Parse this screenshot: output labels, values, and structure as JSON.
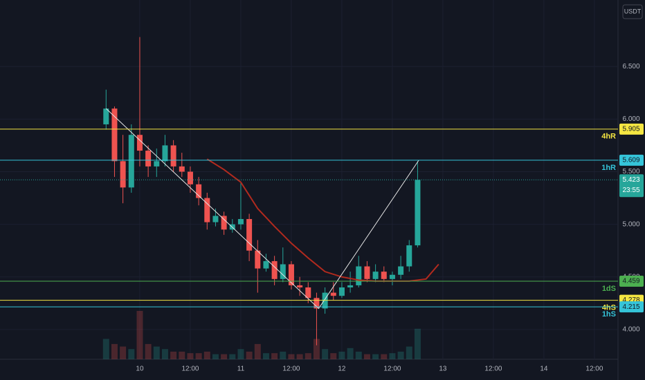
{
  "chart_data": {
    "type": "candlestick",
    "currency": "USDT",
    "x": [
      -8,
      -6,
      -4,
      -2,
      0,
      2,
      4,
      6,
      8,
      10,
      12,
      14,
      16,
      18,
      20,
      22,
      24,
      26,
      28,
      30,
      32,
      34,
      36,
      38,
      40,
      42,
      44,
      46,
      48,
      50,
      52,
      54,
      56,
      58,
      60,
      62,
      64,
      66
    ],
    "open": [
      5.95,
      6.1,
      5.6,
      5.35,
      5.85,
      5.7,
      5.55,
      5.6,
      5.75,
      5.55,
      5.5,
      5.38,
      5.25,
      5.02,
      5.08,
      4.95,
      5.0,
      5.05,
      4.75,
      4.58,
      4.65,
      4.48,
      4.62,
      4.42,
      4.4,
      4.3,
      4.2,
      4.35,
      4.32,
      4.4,
      4.42,
      4.6,
      4.48,
      4.55,
      4.48,
      4.52,
      4.6,
      4.8
    ],
    "high": [
      6.28,
      6.12,
      5.85,
      5.95,
      6.78,
      5.75,
      5.72,
      5.85,
      5.8,
      5.68,
      5.55,
      5.45,
      5.3,
      5.15,
      5.12,
      5.05,
      5.4,
      5.1,
      4.85,
      4.72,
      4.7,
      4.78,
      4.65,
      4.5,
      4.45,
      4.35,
      4.4,
      4.45,
      4.45,
      4.55,
      4.7,
      4.65,
      4.62,
      4.6,
      4.55,
      4.7,
      4.85,
      5.6
    ],
    "low": [
      5.9,
      5.45,
      5.2,
      5.3,
      5.55,
      5.45,
      5.45,
      5.55,
      5.5,
      5.45,
      5.3,
      5.18,
      4.95,
      4.98,
      4.9,
      4.92,
      4.95,
      4.65,
      4.35,
      4.55,
      4.42,
      4.45,
      4.38,
      4.32,
      4.25,
      3.85,
      4.15,
      4.28,
      4.3,
      4.35,
      4.4,
      4.45,
      4.45,
      4.45,
      4.42,
      4.48,
      4.55,
      4.78
    ],
    "close": [
      6.1,
      5.6,
      5.35,
      5.85,
      5.7,
      5.55,
      5.6,
      5.75,
      5.55,
      5.5,
      5.38,
      5.25,
      5.02,
      5.08,
      4.95,
      5.0,
      5.05,
      4.75,
      4.58,
      4.65,
      4.48,
      4.62,
      4.42,
      4.4,
      4.3,
      4.2,
      4.35,
      4.32,
      4.4,
      4.42,
      4.6,
      4.48,
      4.55,
      4.48,
      4.52,
      4.6,
      4.8,
      5.423
    ],
    "volume": [
      40,
      30,
      25,
      20,
      95,
      30,
      25,
      20,
      15,
      15,
      12,
      12,
      15,
      10,
      10,
      10,
      20,
      15,
      30,
      12,
      12,
      15,
      10,
      10,
      12,
      40,
      20,
      12,
      15,
      22,
      15,
      10,
      10,
      10,
      12,
      15,
      25,
      60
    ],
    "up_color": "#26a69a",
    "down_color": "#ef5350",
    "countdown": "23:55",
    "moving_average": {
      "color": "#b22a1e",
      "x": [
        16,
        20,
        24,
        28,
        32,
        36,
        40,
        44,
        48,
        52,
        56,
        60,
        64,
        68,
        71
      ],
      "values": [
        5.62,
        5.52,
        5.4,
        5.15,
        4.98,
        4.82,
        4.68,
        4.55,
        4.5,
        4.47,
        4.46,
        4.46,
        4.46,
        4.48,
        4.62
      ]
    },
    "trend_line": {
      "color": "#e6e6e6",
      "x": [
        -8,
        42.5,
        66.3
      ],
      "values": [
        6.1,
        4.2,
        5.61
      ]
    },
    "levels": [
      {
        "name": "4hR",
        "value": 5.905,
        "color": "#f5e642"
      },
      {
        "name": "1hR",
        "value": 5.609,
        "color": "#35c4d9"
      },
      {
        "name": "1dS",
        "value": 4.459,
        "color": "#4caf50"
      },
      {
        "name": "4hS",
        "value": 4.278,
        "color": "#f5e642"
      },
      {
        "name": "1hS",
        "value": 4.215,
        "color": "#35c4d9"
      }
    ],
    "xlim": [
      -33.2,
      113.6
    ],
    "xticks": [
      {
        "value": 0,
        "label": "10"
      },
      {
        "value": 12,
        "label": "12:00"
      },
      {
        "value": 24,
        "label": "11"
      },
      {
        "value": 36,
        "label": "12:00"
      },
      {
        "value": 48,
        "label": "12"
      },
      {
        "value": 60,
        "label": "12:00"
      },
      {
        "value": 72,
        "label": "13"
      },
      {
        "value": 84,
        "label": "12:00"
      },
      {
        "value": 96,
        "label": "14"
      },
      {
        "value": 108,
        "label": "12:00"
      }
    ],
    "ylim": [
      3.717,
      7.132
    ],
    "yticks": [
      {
        "value": 4,
        "label": "4.000"
      },
      {
        "value": 4.5,
        "label": "4.500"
      },
      {
        "value": 5,
        "label": "5.000"
      },
      {
        "value": 5.5,
        "label": "5.500"
      },
      {
        "value": 6,
        "label": "6.000"
      },
      {
        "value": 6.5,
        "label": "6.500"
      }
    ],
    "grid": true
  }
}
